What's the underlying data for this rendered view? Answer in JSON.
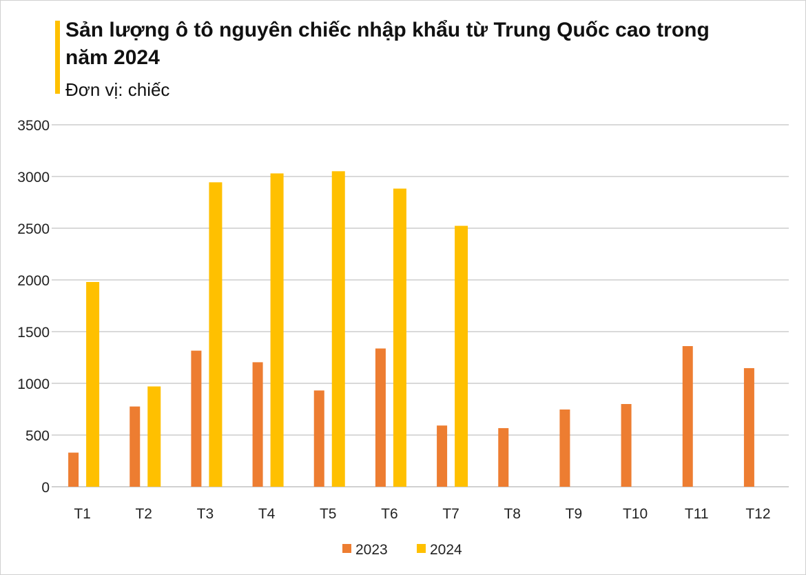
{
  "chart_data": {
    "type": "bar",
    "title": "Sản lượng ô tô nguyên chiếc nhập khẩu từ Trung Quốc cao trong năm 2024",
    "subtitle": "Đơn vị: chiếc",
    "categories": [
      "T1",
      "T2",
      "T3",
      "T4",
      "T5",
      "T6",
      "T7",
      "T8",
      "T9",
      "T10",
      "T11",
      "T12"
    ],
    "series": [
      {
        "name": "2023",
        "color": "#ED7D31",
        "values": [
          330,
          776,
          1316,
          1204,
          931,
          1337,
          592,
          567,
          747,
          800,
          1360,
          1147
        ]
      },
      {
        "name": "2024",
        "color": "#FFC000",
        "values": [
          1980,
          970,
          2944,
          3030,
          3051,
          2883,
          2523,
          null,
          null,
          null,
          null,
          null
        ]
      }
    ],
    "ylim": [
      0,
      3500
    ],
    "yticks": [
      0,
      500,
      1000,
      1500,
      2000,
      2500,
      3000,
      3500
    ],
    "grid": true,
    "legend": "bottom",
    "accent_color": "#FFC000"
  }
}
